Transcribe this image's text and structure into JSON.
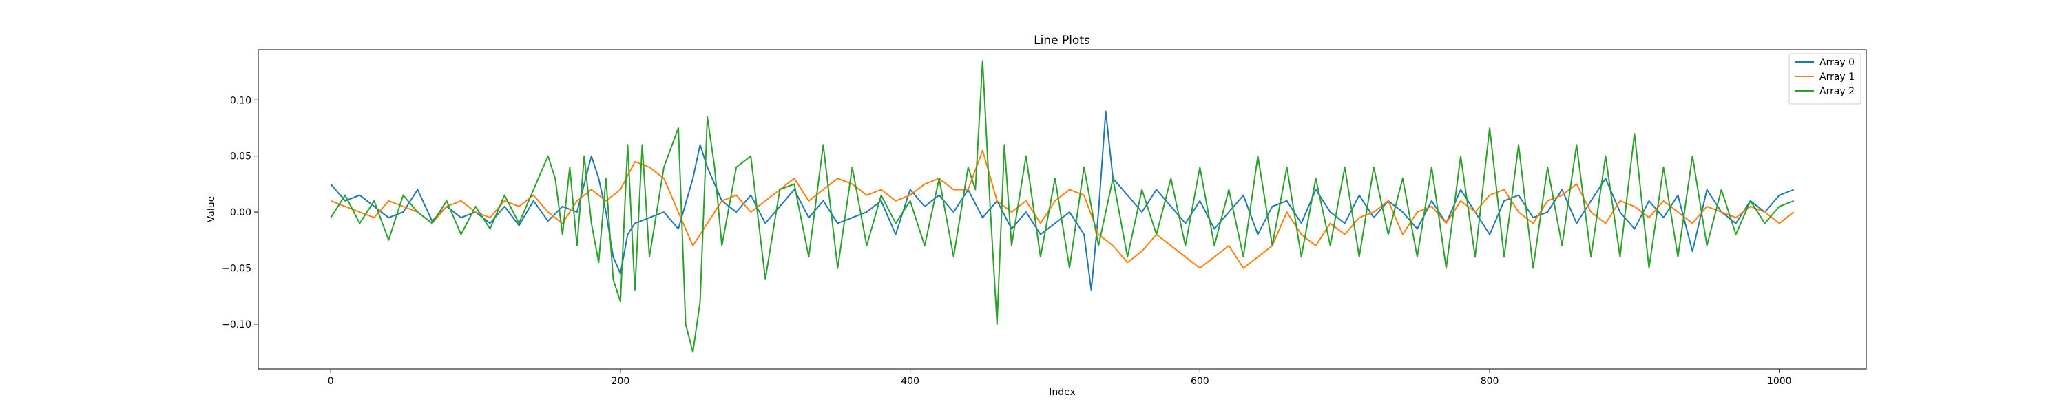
{
  "chart_data": {
    "type": "line",
    "title": "Line Plots",
    "xlabel": "Index",
    "ylabel": "Value",
    "xlim": [
      -50,
      1060
    ],
    "ylim": [
      -0.14,
      0.145
    ],
    "xticks": [
      0,
      200,
      400,
      600,
      800,
      1000
    ],
    "yticks": [
      -0.1,
      -0.05,
      0.0,
      0.05,
      0.1
    ],
    "xtick_labels": [
      "0",
      "200",
      "400",
      "600",
      "800",
      "1000"
    ],
    "ytick_labels": [
      "−0.10",
      "−0.05",
      "0.00",
      "0.05",
      "0.10"
    ],
    "grid": false,
    "legend_position": "top-right",
    "series": [
      {
        "name": "Array 0",
        "color": "#1f77b4",
        "x": [
          0,
          10,
          20,
          30,
          40,
          50,
          60,
          70,
          80,
          90,
          100,
          110,
          120,
          130,
          140,
          150,
          160,
          170,
          180,
          185,
          190,
          195,
          200,
          205,
          210,
          220,
          230,
          240,
          250,
          255,
          260,
          270,
          280,
          290,
          300,
          310,
          320,
          330,
          340,
          350,
          360,
          370,
          380,
          390,
          400,
          410,
          420,
          430,
          440,
          450,
          460,
          470,
          480,
          490,
          500,
          510,
          520,
          525,
          530,
          535,
          540,
          550,
          560,
          570,
          580,
          590,
          600,
          610,
          620,
          630,
          640,
          650,
          660,
          670,
          680,
          690,
          700,
          710,
          720,
          730,
          740,
          750,
          760,
          770,
          780,
          790,
          800,
          810,
          820,
          830,
          840,
          850,
          860,
          870,
          880,
          890,
          900,
          910,
          920,
          930,
          940,
          950,
          960,
          970,
          980,
          990,
          1000,
          1010
        ],
        "y": [
          0.025,
          0.01,
          0.015,
          0.005,
          -0.005,
          0.0,
          0.02,
          -0.008,
          0.005,
          -0.005,
          0.0,
          -0.01,
          0.005,
          -0.012,
          0.01,
          -0.008,
          0.005,
          0.0,
          0.05,
          0.03,
          0.0,
          -0.04,
          -0.055,
          -0.02,
          -0.01,
          -0.005,
          0.0,
          -0.015,
          0.03,
          0.06,
          0.04,
          0.01,
          0.0,
          0.015,
          -0.01,
          0.005,
          0.02,
          -0.005,
          0.01,
          -0.01,
          -0.005,
          0.0,
          0.01,
          -0.02,
          0.02,
          0.005,
          0.015,
          0.0,
          0.02,
          -0.005,
          0.01,
          -0.015,
          0.0,
          -0.02,
          -0.01,
          0.0,
          -0.02,
          -0.07,
          0.0,
          0.09,
          0.03,
          0.015,
          0.0,
          0.02,
          0.005,
          -0.01,
          0.01,
          -0.015,
          0.0,
          0.015,
          -0.02,
          0.005,
          0.01,
          -0.01,
          0.02,
          0.0,
          -0.01,
          0.015,
          -0.005,
          0.01,
          0.0,
          -0.015,
          0.01,
          -0.01,
          0.02,
          0.0,
          -0.02,
          0.01,
          0.015,
          -0.005,
          0.0,
          0.02,
          -0.01,
          0.01,
          0.03,
          0.0,
          -0.015,
          0.01,
          -0.005,
          0.015,
          -0.035,
          0.02,
          0.0,
          -0.01,
          0.01,
          0.0,
          0.015,
          0.02
        ]
      },
      {
        "name": "Array 1",
        "color": "#ff7f0e",
        "x": [
          0,
          10,
          20,
          30,
          40,
          50,
          60,
          70,
          80,
          90,
          100,
          110,
          120,
          130,
          140,
          150,
          160,
          170,
          180,
          190,
          200,
          210,
          220,
          230,
          240,
          250,
          260,
          270,
          280,
          290,
          300,
          310,
          320,
          330,
          340,
          350,
          360,
          370,
          380,
          390,
          400,
          410,
          420,
          430,
          440,
          450,
          460,
          470,
          480,
          490,
          500,
          510,
          520,
          530,
          540,
          550,
          560,
          570,
          580,
          590,
          600,
          610,
          620,
          630,
          640,
          650,
          660,
          670,
          680,
          690,
          700,
          710,
          720,
          730,
          740,
          750,
          760,
          770,
          780,
          790,
          800,
          810,
          820,
          830,
          840,
          850,
          860,
          870,
          880,
          890,
          900,
          910,
          920,
          930,
          940,
          950,
          960,
          970,
          980,
          990,
          1000,
          1010
        ],
        "y": [
          0.01,
          0.005,
          0.0,
          -0.005,
          0.01,
          0.005,
          0.0,
          -0.01,
          0.005,
          0.01,
          0.0,
          -0.005,
          0.01,
          0.005,
          0.015,
          0.0,
          -0.01,
          0.01,
          0.02,
          0.01,
          0.02,
          0.045,
          0.04,
          0.03,
          0.0,
          -0.03,
          -0.01,
          0.01,
          0.015,
          0.0,
          0.01,
          0.02,
          0.03,
          0.01,
          0.02,
          0.03,
          0.025,
          0.015,
          0.02,
          0.01,
          0.015,
          0.025,
          0.03,
          0.02,
          0.02,
          0.055,
          0.01,
          0.0,
          0.01,
          -0.01,
          0.01,
          0.02,
          0.015,
          -0.02,
          -0.03,
          -0.045,
          -0.035,
          -0.02,
          -0.03,
          -0.04,
          -0.05,
          -0.04,
          -0.03,
          -0.05,
          -0.04,
          -0.03,
          0.0,
          -0.02,
          -0.03,
          -0.01,
          -0.02,
          -0.005,
          0.0,
          0.01,
          -0.02,
          0.0,
          0.005,
          -0.01,
          0.01,
          0.0,
          0.015,
          0.02,
          0.0,
          -0.01,
          0.01,
          0.015,
          0.025,
          0.0,
          -0.01,
          0.01,
          0.005,
          -0.005,
          0.01,
          0.0,
          -0.01,
          0.005,
          0.0,
          -0.005,
          0.005,
          0.0,
          -0.01,
          0.0
        ]
      },
      {
        "name": "Array 2",
        "color": "#2ca02c",
        "x": [
          0,
          10,
          20,
          30,
          40,
          50,
          60,
          70,
          80,
          90,
          100,
          110,
          120,
          130,
          140,
          150,
          155,
          160,
          165,
          170,
          175,
          180,
          185,
          190,
          195,
          200,
          205,
          210,
          215,
          220,
          230,
          240,
          245,
          250,
          255,
          260,
          265,
          270,
          280,
          290,
          300,
          310,
          320,
          330,
          340,
          350,
          360,
          370,
          380,
          390,
          400,
          410,
          420,
          430,
          440,
          445,
          450,
          455,
          460,
          465,
          470,
          480,
          490,
          500,
          510,
          520,
          530,
          540,
          550,
          560,
          570,
          580,
          590,
          600,
          610,
          620,
          630,
          640,
          650,
          660,
          670,
          680,
          690,
          700,
          710,
          720,
          730,
          740,
          750,
          760,
          770,
          780,
          790,
          800,
          810,
          820,
          830,
          840,
          850,
          860,
          870,
          880,
          890,
          900,
          910,
          920,
          930,
          940,
          950,
          960,
          970,
          980,
          990,
          1000,
          1010
        ],
        "y": [
          -0.005,
          0.015,
          -0.01,
          0.01,
          -0.025,
          0.015,
          0.0,
          -0.01,
          0.01,
          -0.02,
          0.005,
          -0.015,
          0.015,
          -0.01,
          0.02,
          0.05,
          0.03,
          -0.02,
          0.04,
          -0.03,
          0.05,
          -0.01,
          -0.045,
          0.03,
          -0.06,
          -0.08,
          0.06,
          -0.07,
          0.06,
          -0.04,
          0.04,
          0.075,
          -0.1,
          -0.125,
          -0.08,
          0.085,
          0.04,
          -0.03,
          0.04,
          0.05,
          -0.06,
          0.02,
          0.025,
          -0.04,
          0.06,
          -0.05,
          0.04,
          -0.03,
          0.015,
          -0.01,
          0.01,
          -0.03,
          0.03,
          -0.04,
          0.04,
          0.02,
          0.135,
          0.01,
          -0.1,
          0.06,
          -0.03,
          0.05,
          -0.04,
          0.03,
          -0.05,
          0.04,
          -0.03,
          0.03,
          -0.04,
          0.02,
          -0.02,
          0.03,
          -0.03,
          0.04,
          -0.03,
          0.02,
          -0.04,
          0.05,
          -0.03,
          0.04,
          -0.04,
          0.03,
          -0.03,
          0.04,
          -0.04,
          0.04,
          -0.02,
          0.03,
          -0.04,
          0.04,
          -0.05,
          0.05,
          -0.04,
          0.075,
          -0.04,
          0.06,
          -0.05,
          0.04,
          -0.03,
          0.06,
          -0.04,
          0.05,
          -0.04,
          0.07,
          -0.05,
          0.04,
          -0.04,
          0.05,
          -0.03,
          0.02,
          -0.02,
          0.01,
          -0.01,
          0.005,
          0.01
        ]
      }
    ]
  }
}
